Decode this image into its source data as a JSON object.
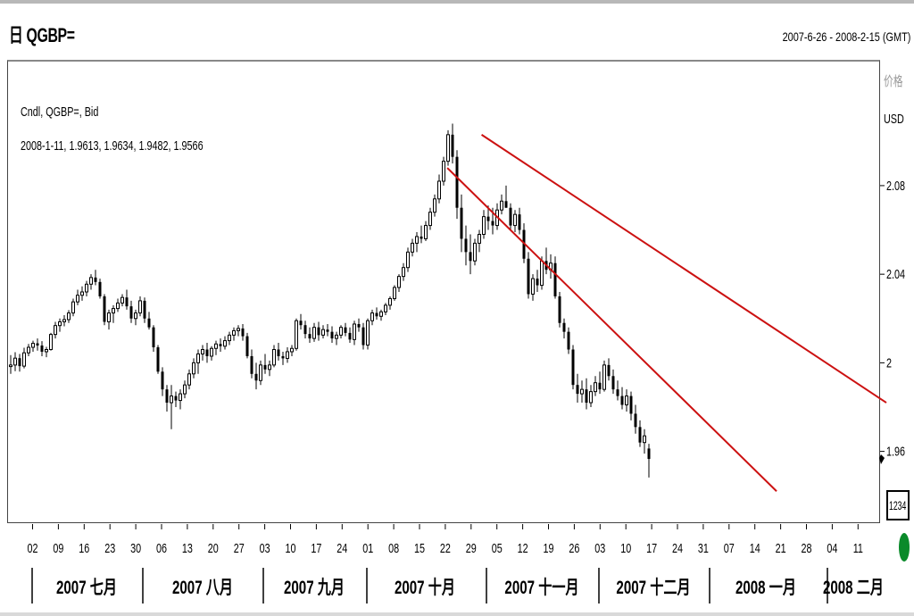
{
  "header": {
    "title": "日 QGBP=",
    "date_range": "2007-6-26 - 2008-2-15 (GMT)"
  },
  "info": {
    "line1": "Cndl, QGBP=, Bid",
    "line2": "2008-1-11, 1.9613, 1.9634, 1.9482, 1.9566"
  },
  "y_axis": {
    "header": "价格",
    "unit": "USD"
  },
  "current_value_box": "1234",
  "colors": {
    "candle": "#000000",
    "channel": "#cc1111",
    "border": "#444444",
    "indicator_dot": "#0a8a2a"
  },
  "chart_data": {
    "type": "candlestick",
    "series_name": "QGBP=",
    "ylim": [
      1.928,
      2.136
    ],
    "y_ticks": [
      {
        "value": 2.08,
        "label": "2.08"
      },
      {
        "value": 2.04,
        "label": "2.04"
      },
      {
        "value": 2.0,
        "label": "2"
      },
      {
        "value": 1.96,
        "label": "1.96"
      }
    ],
    "x_ticks": [
      "02",
      "09",
      "16",
      "23",
      "30",
      "06",
      "13",
      "20",
      "27",
      "03",
      "10",
      "17",
      "24",
      "01",
      "08",
      "15",
      "22",
      "29",
      "05",
      "12",
      "19",
      "26",
      "03",
      "10",
      "17",
      "24",
      "31",
      "07",
      "14",
      "21",
      "28",
      "04",
      "11"
    ],
    "months": [
      "2007 七月",
      "2007 八月",
      "2007 九月",
      "2007 十月",
      "2007 十一月",
      "2007 十二月",
      "2008 一月",
      "2008 二月"
    ],
    "ohlc": [
      [
        1.9983,
        2.0035,
        1.995,
        1.999
      ],
      [
        1.999,
        2.0048,
        1.9962,
        2.0021
      ],
      [
        2.0021,
        2.004,
        1.996,
        1.9985
      ],
      [
        1.9985,
        2.0068,
        1.9975,
        2.0045
      ],
      [
        2.0045,
        2.0085,
        2.003,
        2.007
      ],
      [
        2.007,
        2.01,
        2.005,
        2.0088
      ],
      [
        2.0088,
        2.011,
        2.0055,
        2.0078
      ],
      [
        2.0078,
        2.0098,
        2.003,
        2.005
      ],
      [
        2.005,
        2.0072,
        2.0025,
        2.006
      ],
      [
        2.006,
        2.0135,
        2.0055,
        2.0128
      ],
      [
        2.0128,
        2.0185,
        2.011,
        2.0168
      ],
      [
        2.0168,
        2.02,
        2.014,
        2.0185
      ],
      [
        2.0185,
        2.0215,
        2.0165,
        2.0195
      ],
      [
        2.0195,
        2.0238,
        2.018,
        2.0225
      ],
      [
        2.0225,
        2.029,
        2.021,
        2.0275
      ],
      [
        2.0275,
        2.033,
        2.026,
        2.0305
      ],
      [
        2.0305,
        2.0345,
        2.028,
        2.032
      ],
      [
        2.032,
        2.037,
        2.03,
        2.0355
      ],
      [
        2.0355,
        2.04,
        2.033,
        2.0385
      ],
      [
        2.0385,
        2.042,
        2.035,
        2.0365
      ],
      [
        2.0365,
        2.038,
        2.029,
        2.03
      ],
      [
        2.03,
        2.031,
        2.017,
        2.0185
      ],
      [
        2.0185,
        2.024,
        2.015,
        2.0225
      ],
      [
        2.0225,
        2.026,
        2.018,
        2.0245
      ],
      [
        2.0245,
        2.029,
        2.023,
        2.027
      ],
      [
        2.027,
        2.031,
        2.0255,
        2.0295
      ],
      [
        2.0295,
        2.033,
        2.024,
        2.0255
      ],
      [
        2.0255,
        2.028,
        2.018,
        2.02
      ],
      [
        2.02,
        2.024,
        2.017,
        2.0225
      ],
      [
        2.0225,
        2.03,
        2.021,
        2.028
      ],
      [
        2.028,
        2.0295,
        2.018,
        2.02
      ],
      [
        2.02,
        2.023,
        2.015,
        2.016
      ],
      [
        2.016,
        2.017,
        2.005,
        2.007
      ],
      [
        2.007,
        2.008,
        1.995,
        1.996
      ],
      [
        1.996,
        1.998,
        1.985,
        1.988
      ],
      [
        1.988,
        1.99,
        1.978,
        1.982
      ],
      [
        1.982,
        1.99,
        1.97,
        1.985
      ],
      [
        1.985,
        1.987,
        1.98,
        1.983
      ],
      [
        1.983,
        1.988,
        1.979,
        1.986
      ],
      [
        1.986,
        1.992,
        1.984,
        1.99
      ],
      [
        1.99,
        1.997,
        1.988,
        1.995
      ],
      [
        1.995,
        2.002,
        1.993,
        2.0
      ],
      [
        2.0,
        2.006,
        1.995,
        2.004
      ],
      [
        2.004,
        2.008,
        2.001,
        2.006
      ],
      [
        2.006,
        2.009,
        2.0,
        2.003
      ],
      [
        2.003,
        2.0075,
        2.001,
        2.0065
      ],
      [
        2.0065,
        2.01,
        2.0035,
        2.0085
      ],
      [
        2.0085,
        2.011,
        2.005,
        2.0075
      ],
      [
        2.0075,
        2.012,
        2.006,
        2.01
      ],
      [
        2.01,
        2.014,
        2.008,
        2.0125
      ],
      [
        2.0125,
        2.016,
        2.01,
        2.0145
      ],
      [
        2.0145,
        2.017,
        2.012,
        2.0155
      ],
      [
        2.0155,
        2.0175,
        2.01,
        2.012
      ],
      [
        2.012,
        2.0135,
        2.002,
        2.003
      ],
      [
        2.003,
        2.006,
        1.993,
        1.995
      ],
      [
        1.995,
        2.0,
        1.988,
        1.992
      ],
      [
        1.992,
        2.001,
        1.99,
        1.999
      ],
      [
        1.999,
        2.004,
        1.995,
        1.997
      ],
      [
        1.997,
        2.001,
        1.994,
        1.999
      ],
      [
        1.999,
        2.008,
        1.998,
        2.006
      ],
      [
        2.006,
        2.009,
        2.001,
        2.003
      ],
      [
        2.003,
        2.005,
        1.999,
        2.002
      ],
      [
        2.002,
        2.007,
        2.0,
        2.005
      ],
      [
        2.005,
        2.008,
        2.003,
        2.0065
      ],
      [
        2.0065,
        2.02,
        2.0055,
        2.019
      ],
      [
        2.019,
        2.022,
        2.015,
        2.017
      ],
      [
        2.017,
        2.019,
        2.011,
        2.013
      ],
      [
        2.013,
        2.016,
        2.009,
        2.011
      ],
      [
        2.011,
        2.018,
        2.0095,
        2.016
      ],
      [
        2.016,
        2.0185,
        2.01,
        2.0125
      ],
      [
        2.0125,
        2.017,
        2.011,
        2.015
      ],
      [
        2.015,
        2.0175,
        2.012,
        2.014
      ],
      [
        2.014,
        2.0165,
        2.009,
        2.011
      ],
      [
        2.011,
        2.014,
        2.008,
        2.0125
      ],
      [
        2.0125,
        2.017,
        2.011,
        2.016
      ],
      [
        2.016,
        2.018,
        2.012,
        2.0135
      ],
      [
        2.0135,
        2.016,
        2.009,
        2.0105
      ],
      [
        2.0105,
        2.019,
        2.008,
        2.0175
      ],
      [
        2.0175,
        2.02,
        2.014,
        2.016
      ],
      [
        2.016,
        2.018,
        2.006,
        2.008
      ],
      [
        2.008,
        2.02,
        2.006,
        2.019
      ],
      [
        2.019,
        2.024,
        2.017,
        2.0225
      ],
      [
        2.0225,
        2.025,
        2.0195,
        2.021
      ],
      [
        2.021,
        2.024,
        2.019,
        2.023
      ],
      [
        2.023,
        2.027,
        2.0215,
        2.026
      ],
      [
        2.026,
        2.03,
        2.024,
        2.029
      ],
      [
        2.029,
        2.035,
        2.028,
        2.034
      ],
      [
        2.034,
        2.04,
        2.032,
        2.039
      ],
      [
        2.039,
        2.045,
        2.037,
        2.043
      ],
      [
        2.043,
        2.052,
        2.041,
        2.05
      ],
      [
        2.05,
        2.056,
        2.048,
        2.054
      ],
      [
        2.054,
        2.059,
        2.05,
        2.057
      ],
      [
        2.057,
        2.062,
        2.054,
        2.056
      ],
      [
        2.056,
        2.064,
        2.055,
        2.062
      ],
      [
        2.062,
        2.07,
        2.06,
        2.068
      ],
      [
        2.068,
        2.076,
        2.066,
        2.074
      ],
      [
        2.074,
        2.085,
        2.072,
        2.082
      ],
      [
        2.082,
        2.093,
        2.08,
        2.091
      ],
      [
        2.091,
        2.105,
        2.089,
        2.103
      ],
      [
        2.103,
        2.108,
        2.09,
        2.093
      ],
      [
        2.093,
        2.096,
        2.065,
        2.07
      ],
      [
        2.07,
        2.076,
        2.05,
        2.056
      ],
      [
        2.056,
        2.062,
        2.044,
        2.05
      ],
      [
        2.05,
        2.058,
        2.04,
        2.046
      ],
      [
        2.046,
        2.056,
        2.044,
        2.054
      ],
      [
        2.054,
        2.06,
        2.05,
        2.058
      ],
      [
        2.058,
        2.069,
        2.056,
        2.066
      ],
      [
        2.066,
        2.071,
        2.06,
        2.064
      ],
      [
        2.064,
        2.07,
        2.058,
        2.062
      ],
      [
        2.062,
        2.072,
        2.06,
        2.069
      ],
      [
        2.069,
        2.076,
        2.067,
        2.073
      ],
      [
        2.073,
        2.08,
        2.07,
        2.07
      ],
      [
        2.07,
        2.072,
        2.06,
        2.062
      ],
      [
        2.062,
        2.069,
        2.059,
        2.067
      ],
      [
        2.067,
        2.07,
        2.058,
        2.06
      ],
      [
        2.06,
        2.063,
        2.045,
        2.047
      ],
      [
        2.047,
        2.05,
        2.029,
        2.031
      ],
      [
        2.031,
        2.04,
        2.028,
        2.038
      ],
      [
        2.038,
        2.042,
        2.032,
        2.035
      ],
      [
        2.035,
        2.048,
        2.033,
        2.046
      ],
      [
        2.046,
        2.052,
        2.04,
        2.042
      ],
      [
        2.042,
        2.049,
        2.038,
        2.045
      ],
      [
        2.045,
        2.048,
        2.029,
        2.03
      ],
      [
        2.03,
        2.032,
        2.016,
        2.018
      ],
      [
        2.018,
        2.02,
        2.011,
        2.014
      ],
      [
        2.014,
        2.016,
        2.004,
        2.006
      ],
      [
        2.006,
        2.008,
        1.988,
        1.99
      ],
      [
        1.99,
        1.995,
        1.982,
        1.986
      ],
      [
        1.986,
        1.992,
        1.982,
        1.988
      ],
      [
        1.988,
        1.993,
        1.979,
        1.982
      ],
      [
        1.982,
        1.99,
        1.98,
        1.987
      ],
      [
        1.987,
        1.994,
        1.985,
        1.991
      ],
      [
        1.991,
        1.996,
        1.986,
        1.988
      ],
      [
        1.988,
        2.001,
        1.987,
        1.999
      ],
      [
        1.999,
        2.002,
        1.992,
        1.994
      ],
      [
        1.994,
        1.997,
        1.986,
        1.988
      ],
      [
        1.988,
        1.992,
        1.983,
        1.985
      ],
      [
        1.985,
        1.989,
        1.979,
        1.981
      ],
      [
        1.981,
        1.988,
        1.978,
        1.985
      ],
      [
        1.985,
        1.987,
        1.974,
        1.977
      ],
      [
        1.977,
        1.981,
        1.968,
        1.971
      ],
      [
        1.971,
        1.974,
        1.962,
        1.964
      ],
      [
        1.964,
        1.97,
        1.959,
        1.967
      ],
      [
        1.9613,
        1.9634,
        1.9482,
        1.9566
      ]
    ],
    "channel_lines": [
      {
        "name": "upper",
        "points": [
          [
            2007.83,
            2.103
          ],
          [
            2008.125,
            1.982
          ]
        ]
      },
      {
        "name": "lower",
        "points": [
          [
            2007.805,
            2.088
          ],
          [
            2008.045,
            1.942
          ]
        ]
      }
    ]
  }
}
